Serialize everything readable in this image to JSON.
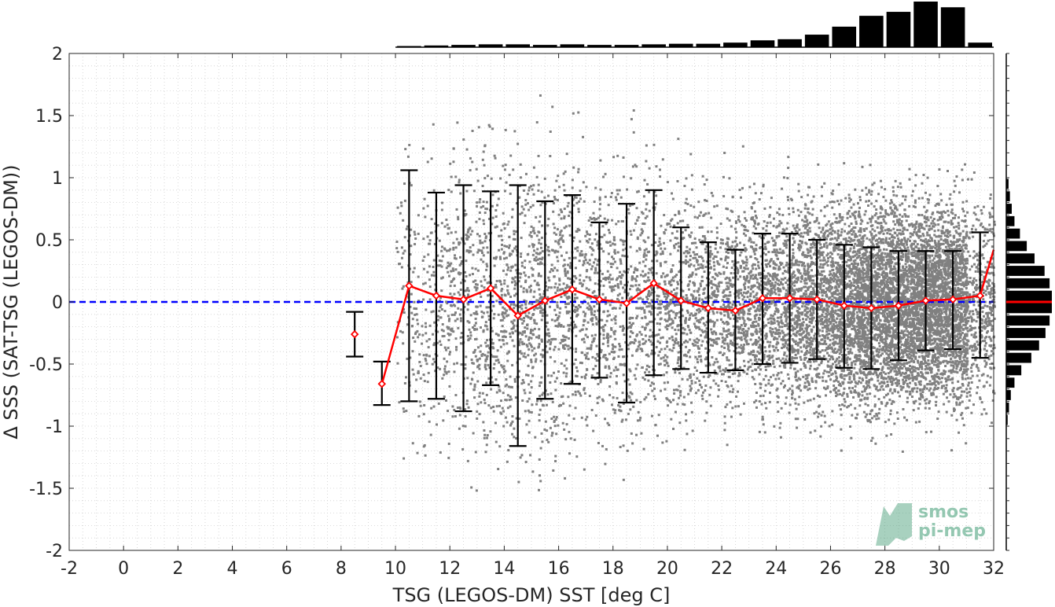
{
  "chart_data": {
    "type": "scatter",
    "xlabel": "TSG (LEGOS-DM) SST [deg C]",
    "ylabel": "Δ SSS (SAT-TSG (LEGOS-DM))",
    "xlim": [
      -2,
      32
    ],
    "ylim": [
      -2,
      2
    ],
    "x_ticks": [
      "-2",
      "0",
      "2",
      "4",
      "6",
      "8",
      "10",
      "12",
      "14",
      "16",
      "18",
      "20",
      "22",
      "24",
      "26",
      "28",
      "30",
      "32"
    ],
    "y_ticks": [
      "-2",
      "-1.5",
      "-1",
      "-0.5",
      "0",
      "0.5",
      "1",
      "1.5",
      "2"
    ],
    "grid": "dotted",
    "reference_line": {
      "y": 0,
      "color": "#0000ff",
      "style": "dashed"
    },
    "binned_mean": {
      "color": "#ff0000",
      "x": [
        8.5,
        9.5,
        10.5,
        11.5,
        12.5,
        13.5,
        14.5,
        15.5,
        16.5,
        17.5,
        18.5,
        19.5,
        20.5,
        21.5,
        22.5,
        23.5,
        24.5,
        25.5,
        26.5,
        27.5,
        28.5,
        29.5,
        30.5,
        31.5,
        32.0
      ],
      "mean": [
        -0.26,
        -0.66,
        0.13,
        0.05,
        0.02,
        0.11,
        -0.11,
        0.01,
        0.1,
        0.02,
        -0.01,
        0.15,
        0.01,
        -0.05,
        -0.07,
        0.03,
        0.03,
        0.02,
        -0.03,
        -0.05,
        -0.03,
        0.01,
        0.02,
        0.05,
        0.42
      ]
    },
    "error_bars": {
      "color": "#000000",
      "x": [
        8.5,
        9.5,
        10.5,
        11.5,
        12.5,
        13.5,
        14.5,
        15.5,
        16.5,
        17.5,
        18.5,
        19.5,
        20.5,
        21.5,
        22.5,
        23.5,
        24.5,
        25.5,
        26.5,
        27.5,
        28.5,
        29.5,
        30.5,
        31.5
      ],
      "lower": [
        -0.44,
        -0.83,
        -0.8,
        -0.78,
        -0.88,
        -0.67,
        -1.16,
        -0.78,
        -0.66,
        -0.61,
        -0.81,
        -0.59,
        -0.54,
        -0.57,
        -0.55,
        -0.5,
        -0.49,
        -0.46,
        -0.53,
        -0.54,
        -0.47,
        -0.39,
        -0.38,
        -0.45
      ],
      "upper": [
        -0.08,
        -0.48,
        1.06,
        0.88,
        0.94,
        0.89,
        0.94,
        0.81,
        0.86,
        0.64,
        0.79,
        0.9,
        0.6,
        0.48,
        0.42,
        0.55,
        0.55,
        0.5,
        0.46,
        0.44,
        0.41,
        0.41,
        0.41,
        0.56
      ]
    },
    "scatter": {
      "color": "#808080",
      "bins": [
        {
          "x": 10.5,
          "spread": 0.55,
          "count": 120
        },
        {
          "x": 11.5,
          "spread": 0.55,
          "count": 180
        },
        {
          "x": 12.5,
          "spread": 0.6,
          "count": 240
        },
        {
          "x": 13.5,
          "spread": 0.58,
          "count": 280
        },
        {
          "x": 14.5,
          "spread": 0.62,
          "count": 300
        },
        {
          "x": 15.5,
          "spread": 0.58,
          "count": 300
        },
        {
          "x": 16.5,
          "spread": 0.55,
          "count": 300
        },
        {
          "x": 17.5,
          "spread": 0.52,
          "count": 280
        },
        {
          "x": 18.5,
          "spread": 0.55,
          "count": 260
        },
        {
          "x": 19.5,
          "spread": 0.52,
          "count": 300
        },
        {
          "x": 20.5,
          "spread": 0.45,
          "count": 320
        },
        {
          "x": 21.5,
          "spread": 0.42,
          "count": 330
        },
        {
          "x": 22.5,
          "spread": 0.42,
          "count": 420
        },
        {
          "x": 23.5,
          "spread": 0.42,
          "count": 500
        },
        {
          "x": 24.5,
          "spread": 0.42,
          "count": 560
        },
        {
          "x": 25.5,
          "spread": 0.42,
          "count": 700
        },
        {
          "x": 26.5,
          "spread": 0.42,
          "count": 900
        },
        {
          "x": 27.5,
          "spread": 0.42,
          "count": 1100
        },
        {
          "x": 28.5,
          "spread": 0.4,
          "count": 1200
        },
        {
          "x": 29.5,
          "spread": 0.38,
          "count": 1300
        },
        {
          "x": 30.5,
          "spread": 0.38,
          "count": 1150
        },
        {
          "x": 31.5,
          "spread": 0.4,
          "count": 400
        }
      ]
    },
    "top_histogram": {
      "color": "#000000",
      "x": [
        10.5,
        11.5,
        12.5,
        13.5,
        14.5,
        15.5,
        16.5,
        17.5,
        18.5,
        19.5,
        20.5,
        21.5,
        22.5,
        23.5,
        24.5,
        25.5,
        26.5,
        27.5,
        28.5,
        29.5,
        30.5,
        31.5
      ],
      "value": [
        0.02,
        0.03,
        0.04,
        0.05,
        0.05,
        0.04,
        0.05,
        0.04,
        0.04,
        0.05,
        0.06,
        0.06,
        0.08,
        0.12,
        0.14,
        0.22,
        0.36,
        0.55,
        0.62,
        0.8,
        0.7,
        0.08
      ]
    },
    "right_histogram": {
      "color": "#000000",
      "median_color": "#ff0000",
      "median": 0.0,
      "y": [
        -0.95,
        -0.85,
        -0.75,
        -0.65,
        -0.55,
        -0.45,
        -0.35,
        -0.25,
        -0.15,
        -0.05,
        0.05,
        0.15,
        0.25,
        0.35,
        0.45,
        0.55,
        0.65,
        0.75,
        0.85,
        0.95
      ],
      "value": [
        0.03,
        0.06,
        0.1,
        0.18,
        0.33,
        0.55,
        0.72,
        0.86,
        0.95,
        1.0,
        1.0,
        0.95,
        0.84,
        0.62,
        0.45,
        0.3,
        0.18,
        0.12,
        0.08,
        0.05
      ]
    }
  },
  "watermark": {
    "line1": "smos",
    "line2": "pi-mep",
    "color": "#3e9a72"
  }
}
